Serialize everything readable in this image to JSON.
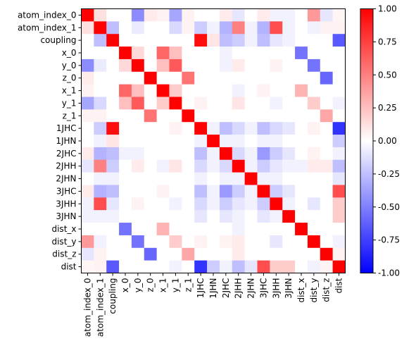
{
  "chart_data": {
    "type": "heatmap",
    "labels": [
      "atom_index_0",
      "atom_index_1",
      "coupling",
      "x_0",
      "y_0",
      "z_0",
      "x_1",
      "y_1",
      "z_1",
      "1JHC",
      "1JHN",
      "2JHC",
      "2JHH",
      "2JHN",
      "3JHC",
      "3JHH",
      "3JHN",
      "dist_x",
      "dist_y",
      "dist_z",
      "dist"
    ],
    "values": [
      [
        1.0,
        0.12,
        0.0,
        0.0,
        -0.45,
        0.08,
        0.05,
        -0.35,
        0.05,
        0.0,
        0.0,
        0.08,
        -0.1,
        0.0,
        0.08,
        -0.05,
        -0.05,
        0.0,
        0.4,
        -0.1,
        0.04
      ],
      [
        0.12,
        1.0,
        -0.25,
        0.0,
        -0.08,
        0.0,
        0.0,
        -0.15,
        0.05,
        -0.2,
        -0.05,
        -0.3,
        0.5,
        -0.05,
        -0.3,
        0.7,
        -0.05,
        0.0,
        -0.05,
        0.05,
        0.05
      ],
      [
        0.0,
        -0.25,
        1.0,
        0.0,
        0.0,
        0.0,
        0.0,
        0.0,
        0.0,
        0.95,
        0.1,
        -0.25,
        -0.2,
        -0.05,
        -0.25,
        -0.1,
        -0.05,
        0.0,
        0.0,
        0.0,
        -0.65
      ],
      [
        0.0,
        0.0,
        0.0,
        1.0,
        0.15,
        0.0,
        0.6,
        0.25,
        0.0,
        0.0,
        0.0,
        -0.05,
        0.0,
        0.0,
        0.0,
        0.0,
        0.0,
        -0.55,
        0.0,
        0.0,
        0.0
      ],
      [
        -0.45,
        -0.08,
        0.0,
        0.15,
        1.0,
        0.0,
        0.25,
        0.65,
        0.0,
        0.0,
        0.0,
        -0.05,
        0.08,
        0.0,
        0.0,
        0.05,
        0.0,
        0.0,
        -0.55,
        0.0,
        0.0
      ],
      [
        0.08,
        0.0,
        0.0,
        0.0,
        0.0,
        1.0,
        0.0,
        0.0,
        0.55,
        0.0,
        0.0,
        0.0,
        0.0,
        0.0,
        0.0,
        0.0,
        0.0,
        0.0,
        0.0,
        -0.6,
        0.0
      ],
      [
        0.05,
        0.0,
        0.0,
        0.6,
        0.25,
        0.0,
        1.0,
        0.2,
        0.0,
        0.0,
        0.0,
        0.0,
        -0.05,
        0.0,
        0.05,
        0.0,
        0.0,
        0.3,
        0.0,
        0.0,
        0.0
      ],
      [
        -0.35,
        -0.15,
        0.0,
        0.25,
        0.65,
        0.0,
        0.2,
        1.0,
        0.0,
        0.05,
        0.0,
        0.0,
        0.1,
        0.0,
        0.0,
        -0.05,
        0.0,
        0.0,
        0.2,
        0.0,
        -0.05
      ],
      [
        0.05,
        0.05,
        0.0,
        0.0,
        0.0,
        0.55,
        0.0,
        0.0,
        1.0,
        0.0,
        0.0,
        0.0,
        0.0,
        0.0,
        0.0,
        0.0,
        0.0,
        0.0,
        0.0,
        0.35,
        0.0
      ],
      [
        0.0,
        -0.2,
        0.95,
        0.0,
        0.0,
        0.0,
        0.0,
        0.05,
        0.0,
        1.0,
        -0.05,
        -0.25,
        -0.15,
        -0.05,
        -0.25,
        -0.15,
        -0.1,
        0.0,
        0.05,
        0.0,
        -0.8
      ],
      [
        0.0,
        -0.05,
        0.1,
        0.0,
        0.0,
        0.0,
        0.0,
        0.0,
        0.0,
        -0.05,
        1.0,
        -0.05,
        -0.05,
        0.0,
        -0.05,
        -0.05,
        0.0,
        0.0,
        0.0,
        0.0,
        -0.2
      ],
      [
        0.08,
        -0.3,
        -0.25,
        -0.05,
        -0.05,
        0.0,
        0.0,
        0.0,
        0.0,
        -0.25,
        -0.05,
        1.0,
        -0.15,
        -0.05,
        -0.4,
        -0.2,
        -0.1,
        0.0,
        0.05,
        0.0,
        -0.05
      ],
      [
        -0.1,
        0.5,
        -0.2,
        0.0,
        0.08,
        0.0,
        -0.05,
        0.1,
        0.0,
        -0.15,
        -0.05,
        -0.15,
        1.0,
        -0.05,
        -0.2,
        -0.1,
        -0.05,
        -0.05,
        0.08,
        0.08,
        -0.25
      ],
      [
        0.0,
        -0.05,
        -0.05,
        0.0,
        0.0,
        0.0,
        0.0,
        0.0,
        0.0,
        -0.05,
        0.0,
        -0.05,
        -0.05,
        1.0,
        -0.05,
        -0.05,
        0.0,
        0.0,
        0.0,
        0.0,
        -0.1
      ],
      [
        0.08,
        -0.3,
        -0.25,
        0.0,
        0.0,
        0.0,
        0.05,
        0.0,
        0.0,
        -0.25,
        -0.05,
        -0.4,
        -0.2,
        -0.05,
        1.0,
        -0.2,
        -0.1,
        0.0,
        0.0,
        0.0,
        0.7
      ],
      [
        -0.05,
        0.7,
        -0.1,
        0.0,
        0.05,
        0.0,
        0.0,
        -0.05,
        0.0,
        -0.15,
        -0.05,
        -0.2,
        -0.1,
        -0.05,
        -0.2,
        1.0,
        -0.05,
        0.0,
        -0.1,
        0.0,
        0.2
      ],
      [
        -0.05,
        -0.05,
        -0.05,
        0.0,
        0.0,
        0.0,
        0.0,
        0.0,
        0.0,
        -0.1,
        0.0,
        -0.1,
        -0.05,
        0.0,
        -0.1,
        -0.05,
        1.0,
        0.0,
        0.0,
        0.0,
        0.2
      ],
      [
        0.0,
        0.0,
        0.0,
        -0.55,
        0.0,
        0.0,
        0.3,
        0.0,
        0.0,
        0.0,
        0.0,
        0.0,
        -0.05,
        0.0,
        0.0,
        0.0,
        0.0,
        1.0,
        0.0,
        0.0,
        0.0
      ],
      [
        0.4,
        -0.05,
        0.0,
        0.0,
        -0.55,
        0.0,
        0.0,
        0.2,
        0.0,
        0.05,
        0.0,
        0.05,
        0.08,
        0.0,
        0.0,
        -0.1,
        0.0,
        0.0,
        1.0,
        0.0,
        -0.05
      ],
      [
        -0.1,
        0.05,
        0.0,
        0.0,
        0.0,
        -0.6,
        0.0,
        0.0,
        0.35,
        0.0,
        0.0,
        0.0,
        0.08,
        0.0,
        0.0,
        0.0,
        0.0,
        0.0,
        0.0,
        1.0,
        0.05
      ],
      [
        0.04,
        0.05,
        -0.65,
        0.0,
        0.0,
        0.0,
        0.0,
        -0.05,
        0.0,
        -0.8,
        -0.2,
        -0.05,
        -0.25,
        -0.1,
        0.7,
        0.2,
        0.2,
        0.0,
        -0.05,
        0.05,
        1.0
      ]
    ],
    "colormap": "bwr",
    "colors": {
      "low": "#0000ff",
      "mid": "#ffffff",
      "high": "#ff0000"
    },
    "vmin": -1.0,
    "vmax": 1.0,
    "colorbar_ticks": [
      "-1.00",
      "-0.75",
      "-0.50",
      "-0.25",
      "0.00",
      "0.25",
      "0.50",
      "0.75",
      "1.00"
    ]
  }
}
